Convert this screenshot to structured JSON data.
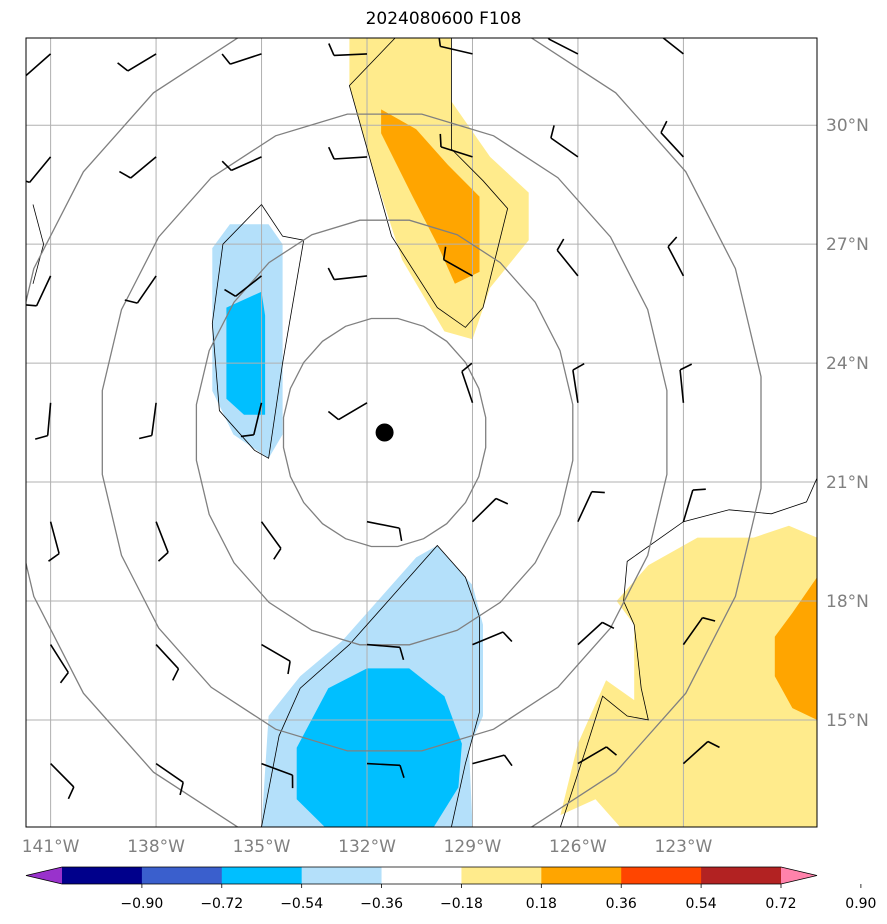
{
  "title": "2024080600 F108",
  "map": {
    "lon_range": [
      -141.7,
      -119.2
    ],
    "lat_range": [
      12.3,
      32.2
    ],
    "lon_ticks": [
      {
        "value": -141,
        "label": "141°W"
      },
      {
        "value": -138,
        "label": "138°W"
      },
      {
        "value": -135,
        "label": "135°W"
      },
      {
        "value": -132,
        "label": "132°W"
      },
      {
        "value": -129,
        "label": "129°W"
      },
      {
        "value": -126,
        "label": "126°W"
      },
      {
        "value": -123,
        "label": "123°W"
      }
    ],
    "lat_ticks": [
      {
        "value": 15,
        "label": "15°N"
      },
      {
        "value": 18,
        "label": "18°N"
      },
      {
        "value": 21,
        "label": "21°N"
      },
      {
        "value": 24,
        "label": "24°N"
      },
      {
        "value": 27,
        "label": "27°N"
      },
      {
        "value": 30,
        "label": "30°N"
      }
    ],
    "storm_center": {
      "lon": -131.5,
      "lat": 22.25
    },
    "range_rings_deg": [
      2.9,
      5.4,
      8.1,
      10.8
    ],
    "colors": {
      "grid": "#b0b0b0",
      "rings": "#808080",
      "barbs": "#000000",
      "frame": "#000000"
    }
  },
  "fill_regions": [
    {
      "name": "north-yellow",
      "level": "0.18 to 0.36",
      "color": "#ffeb8c",
      "points": [
        [
          -131.5,
          32.2
        ],
        [
          -129.6,
          32.2
        ],
        [
          -129.6,
          30.6
        ],
        [
          -128.5,
          29.2
        ],
        [
          -127.4,
          28.3
        ],
        [
          -127.4,
          27.1
        ],
        [
          -128.5,
          25.9
        ],
        [
          -129.0,
          24.6
        ],
        [
          -129.8,
          24.8
        ],
        [
          -131.0,
          26.6
        ],
        [
          -131.8,
          28.8
        ],
        [
          -132.5,
          31.0
        ],
        [
          -132.5,
          32.2
        ]
      ]
    },
    {
      "name": "north-orange",
      "level": "0.36 to 0.54",
      "color": "#ffa500",
      "points": [
        [
          -131.6,
          30.4
        ],
        [
          -130.6,
          29.9
        ],
        [
          -129.7,
          29.0
        ],
        [
          -128.8,
          28.2
        ],
        [
          -128.8,
          26.3
        ],
        [
          -129.5,
          26.0
        ],
        [
          -130.0,
          27.0
        ],
        [
          -130.7,
          28.2
        ],
        [
          -131.6,
          29.8
        ]
      ]
    },
    {
      "name": "west-lightblue",
      "level": "-0.36 to -0.18",
      "color": "#b4e0fa",
      "points": [
        [
          -134.8,
          27.5
        ],
        [
          -135.9,
          27.5
        ],
        [
          -136.4,
          26.9
        ],
        [
          -136.4,
          23.3
        ],
        [
          -135.8,
          22.2
        ],
        [
          -134.8,
          21.6
        ],
        [
          -134.4,
          22.2
        ],
        [
          -134.4,
          27.0
        ]
      ]
    },
    {
      "name": "west-blue",
      "level": "-0.54 to -0.36",
      "color": "#00bfff",
      "points": [
        [
          -135.0,
          25.8
        ],
        [
          -136.0,
          25.4
        ],
        [
          -136.0,
          23.1
        ],
        [
          -135.5,
          22.7
        ],
        [
          -134.9,
          22.7
        ],
        [
          -134.9,
          25.2
        ]
      ]
    },
    {
      "name": "south-lightblue",
      "level": "-0.36 to -0.18",
      "color": "#b4e0fa",
      "points": [
        [
          -130.0,
          19.4
        ],
        [
          -129.0,
          18.4
        ],
        [
          -128.7,
          17.4
        ],
        [
          -128.7,
          15.1
        ],
        [
          -129.1,
          14.3
        ],
        [
          -129.0,
          12.3
        ],
        [
          -135.0,
          12.3
        ],
        [
          -134.8,
          15.1
        ],
        [
          -133.9,
          16.1
        ],
        [
          -132.7,
          17.0
        ],
        [
          -131.3,
          18.4
        ],
        [
          -130.6,
          19.1
        ]
      ]
    },
    {
      "name": "south-blue",
      "level": "-0.54 to -0.36",
      "color": "#00bfff",
      "points": [
        [
          -130.8,
          16.3
        ],
        [
          -129.8,
          15.6
        ],
        [
          -129.3,
          14.4
        ],
        [
          -129.4,
          13.3
        ],
        [
          -130.1,
          12.3
        ],
        [
          -133.2,
          12.3
        ],
        [
          -134.0,
          13.0
        ],
        [
          -134.0,
          14.3
        ],
        [
          -133.1,
          15.8
        ],
        [
          -132.0,
          16.3
        ]
      ]
    },
    {
      "name": "southeast-yellow",
      "level": "0.18 to 0.36",
      "color": "#ffeb8c",
      "points": [
        [
          -119.2,
          19.6
        ],
        [
          -119.2,
          12.3
        ],
        [
          -124.8,
          12.3
        ],
        [
          -125.5,
          13.0
        ],
        [
          -126.5,
          12.6
        ],
        [
          -126.0,
          14.4
        ],
        [
          -125.2,
          16.0
        ],
        [
          -124.4,
          15.5
        ],
        [
          -124.4,
          17.4
        ],
        [
          -124.9,
          18.0
        ],
        [
          -124.0,
          18.9
        ],
        [
          -122.6,
          19.6
        ],
        [
          -121.0,
          19.6
        ],
        [
          -120.0,
          19.9
        ]
      ]
    },
    {
      "name": "southeast-orange",
      "level": "0.36 to 0.54",
      "color": "#ffa500",
      "points": [
        [
          -119.2,
          18.6
        ],
        [
          -119.2,
          15.0
        ],
        [
          -119.9,
          15.3
        ],
        [
          -120.4,
          16.1
        ],
        [
          -120.4,
          17.1
        ],
        [
          -119.9,
          17.7
        ]
      ]
    }
  ],
  "contours": [
    [
      [
        -131.2,
        32.2
      ],
      [
        -132.5,
        31.0
      ],
      [
        -131.3,
        27.2
      ],
      [
        -130.0,
        25.4
      ],
      [
        -129.2,
        24.9
      ],
      [
        -128.7,
        25.4
      ],
      [
        -128.0,
        27.9
      ],
      [
        -128.7,
        28.6
      ],
      [
        -129.6,
        29.4
      ],
      [
        -129.6,
        32.2
      ]
    ],
    [
      [
        -135.0,
        28.0
      ],
      [
        -136.1,
        27.0
      ],
      [
        -136.4,
        25.0
      ],
      [
        -136.2,
        22.8
      ],
      [
        -135.2,
        21.8
      ],
      [
        -134.8,
        21.6
      ],
      [
        -134.4,
        24.0
      ],
      [
        -133.8,
        27.1
      ],
      [
        -134.4,
        27.2
      ],
      [
        -135.0,
        28.0
      ]
    ],
    [
      [
        -135.0,
        12.3
      ],
      [
        -134.5,
        14.6
      ],
      [
        -133.9,
        15.8
      ],
      [
        -132.5,
        16.9
      ],
      [
        -131.4,
        18.0
      ],
      [
        -130.0,
        19.4
      ],
      [
        -129.2,
        18.6
      ],
      [
        -128.8,
        17.6
      ],
      [
        -128.8,
        15.2
      ],
      [
        -129.2,
        13.9
      ],
      [
        -129.6,
        12.3
      ]
    ],
    [
      [
        -126.5,
        12.3
      ],
      [
        -125.8,
        14.2
      ],
      [
        -125.3,
        15.6
      ],
      [
        -124.6,
        15.1
      ],
      [
        -124.0,
        15.0
      ],
      [
        -124.2,
        15.8
      ],
      [
        -124.4,
        17.4
      ],
      [
        -124.7,
        18.0
      ],
      [
        -124.6,
        19.0
      ],
      [
        -123.0,
        20.0
      ],
      [
        -121.7,
        20.3
      ],
      [
        -120.5,
        20.2
      ],
      [
        -119.5,
        20.5
      ],
      [
        -119.2,
        21.1
      ]
    ],
    [
      [
        -141.5,
        28.0
      ],
      [
        -141.2,
        27.0
      ],
      [
        -141.5,
        26.0
      ]
    ]
  ],
  "barb_grid": {
    "lons": [
      -141,
      -138,
      -135,
      -132,
      -129,
      -126,
      -123
    ],
    "lats": [
      31.8,
      29.2,
      26.2,
      23.0,
      20.0,
      16.9,
      13.9
    ]
  },
  "colorbar": {
    "colors": [
      "#9932cc",
      "#00008b",
      "#3a5fcd",
      "#00bfff",
      "#b4e0fa",
      "#ffffff",
      "#ffeb8c",
      "#ffa500",
      "#ff4500",
      "#b22222",
      "#ff82ab"
    ],
    "boundaries": [
      "−0.90",
      "−0.72",
      "−0.54",
      "−0.36",
      "−0.18",
      "0.18",
      "0.36",
      "0.54",
      "0.72",
      "0.90"
    ]
  }
}
